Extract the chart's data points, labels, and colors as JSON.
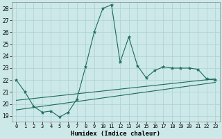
{
  "xlabel": "Humidex (Indice chaleur)",
  "bg_color": "#cce8e8",
  "grid_color": "#b0d4d4",
  "line_color": "#1a6b5a",
  "xlim": [
    -0.5,
    23.5
  ],
  "ylim": [
    18.5,
    28.5
  ],
  "yticks": [
    19,
    20,
    21,
    22,
    23,
    24,
    25,
    26,
    27,
    28
  ],
  "xticks": [
    0,
    1,
    2,
    3,
    4,
    5,
    6,
    7,
    8,
    9,
    10,
    11,
    12,
    13,
    14,
    15,
    16,
    17,
    18,
    19,
    20,
    21,
    22,
    23
  ],
  "line1_x": [
    0,
    1,
    2,
    3,
    4,
    5,
    6,
    7,
    8,
    9,
    10,
    11,
    12,
    13,
    14,
    15,
    16,
    17,
    18,
    19,
    20,
    21,
    22,
    23
  ],
  "line1_y": [
    22.0,
    21.0,
    19.8,
    19.3,
    19.4,
    18.9,
    19.3,
    20.4,
    23.1,
    26.0,
    28.0,
    28.3,
    23.5,
    25.6,
    23.2,
    22.2,
    22.8,
    23.1,
    23.0,
    23.0,
    23.0,
    22.9,
    22.1,
    22.0
  ],
  "line2_x": [
    0,
    23
  ],
  "line2_y": [
    20.3,
    22.1
  ],
  "line3_x": [
    0,
    23
  ],
  "line3_y": [
    19.5,
    21.8
  ]
}
